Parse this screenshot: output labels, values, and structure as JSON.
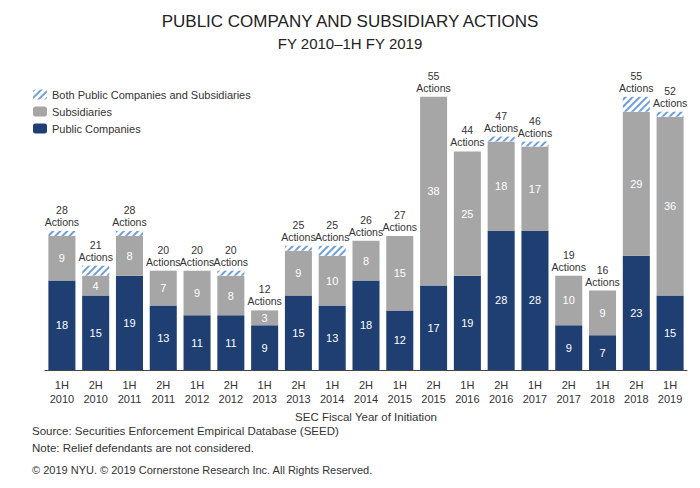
{
  "chart_data": {
    "type": "bar",
    "title": "PUBLIC COMPANY AND SUBSIDIARY ACTIONS",
    "subtitle": "FY 2010–1H FY 2019",
    "x_label": "SEC Fiscal Year of Initiation",
    "categories": [
      "1H 2010",
      "2H 2010",
      "1H 2011",
      "2H 2011",
      "1H 2012",
      "2H 2012",
      "1H 2013",
      "2H 2013",
      "1H 2014",
      "2H 2014",
      "1H 2015",
      "2H 2015",
      "1H 2016",
      "2H 2016",
      "1H 2017",
      "2H 2017",
      "1H 2018",
      "2H 2018",
      "1H 2019"
    ],
    "series": [
      {
        "name": "Public Companies",
        "color": "#1f3f73",
        "data_labels": true,
        "values": [
          18,
          15,
          19,
          13,
          11,
          11,
          9,
          15,
          13,
          18,
          12,
          17,
          19,
          28,
          28,
          9,
          7,
          23,
          15
        ]
      },
      {
        "name": "Subsidiaries",
        "color": "#a6a6a6",
        "data_labels": true,
        "values": [
          9,
          4,
          8,
          7,
          9,
          8,
          3,
          9,
          10,
          8,
          15,
          38,
          25,
          18,
          17,
          10,
          9,
          29,
          36
        ]
      },
      {
        "name": "Both Public Companies and Subsidiaries",
        "color": "#6f9fd8",
        "data_labels": false,
        "values": [
          1,
          2,
          1,
          0,
          0,
          1,
          0,
          1,
          2,
          0,
          0,
          0,
          0,
          1,
          1,
          0,
          0,
          3,
          1
        ]
      }
    ],
    "total_labels": [
      "28 Actions",
      "21 Actions",
      "28 Actions",
      "20 Actions",
      "20 Actions",
      "20 Actions",
      "12 Actions",
      "25 Actions",
      "25 Actions",
      "26 Actions",
      "27 Actions",
      "55 Actions",
      "44 Actions",
      "47 Actions",
      "46 Actions",
      "19 Actions",
      "16 Actions",
      "55 Actions",
      "52 Actions"
    ],
    "notes": [
      "Source: Securities Enforcement Empirical Database (SEED)",
      "Note: Relief defendants are not considered.",
      "© 2019 NYU. © 2019 Cornerstone Research Inc. All Rights Reserved."
    ],
    "stacked": true,
    "legend": "top-left",
    "grid": false,
    "tick_labels": "x",
    "ylim": [
      0,
      60
    ],
    "yticks": [
      0,
      60
    ]
  }
}
